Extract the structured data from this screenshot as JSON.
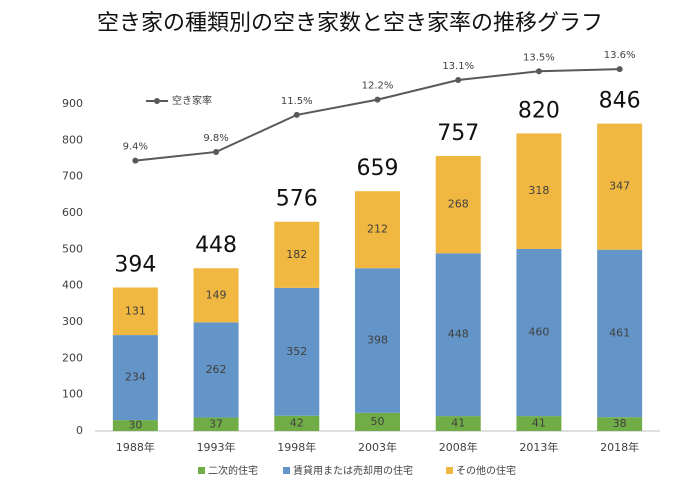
{
  "chart_data": {
    "type": "bar",
    "stacked": true,
    "title": "空き家の種類別の空き家数と空き家率の推移グラフ",
    "categories": [
      "1988年",
      "1993年",
      "1998年",
      "2003年",
      "2008年",
      "2013年",
      "2018年"
    ],
    "series": [
      {
        "name": "二次的住宅",
        "color": "#70ad47",
        "values": [
          30,
          37,
          42,
          50,
          41,
          41,
          38
        ]
      },
      {
        "name": "賃貸用または売却用の住宅",
        "color": "#6495c8",
        "values": [
          234,
          262,
          352,
          398,
          448,
          460,
          461
        ]
      },
      {
        "name": "その他の住宅",
        "color": "#f0b840",
        "values": [
          131,
          149,
          182,
          212,
          268,
          318,
          347
        ]
      },
      {
        "name": "空き家率",
        "type": "line",
        "axis": "y2",
        "color": "#595959",
        "values": [
          9.4,
          9.8,
          11.5,
          12.2,
          13.1,
          13.5,
          13.6
        ],
        "value_labels": [
          "9.4%",
          "9.8%",
          "11.5%",
          "12.2%",
          "13.1%",
          "13.5%",
          "13.6%"
        ]
      }
    ],
    "totals": [
      394,
      448,
      576,
      659,
      757,
      820,
      846
    ],
    "ylim": [
      0,
      900
    ],
    "yticks": [
      0,
      100,
      200,
      300,
      400,
      500,
      600,
      700,
      800,
      900
    ],
    "y2lim": [
      -3,
      12
    ],
    "grid": false,
    "legend": "bottom"
  }
}
